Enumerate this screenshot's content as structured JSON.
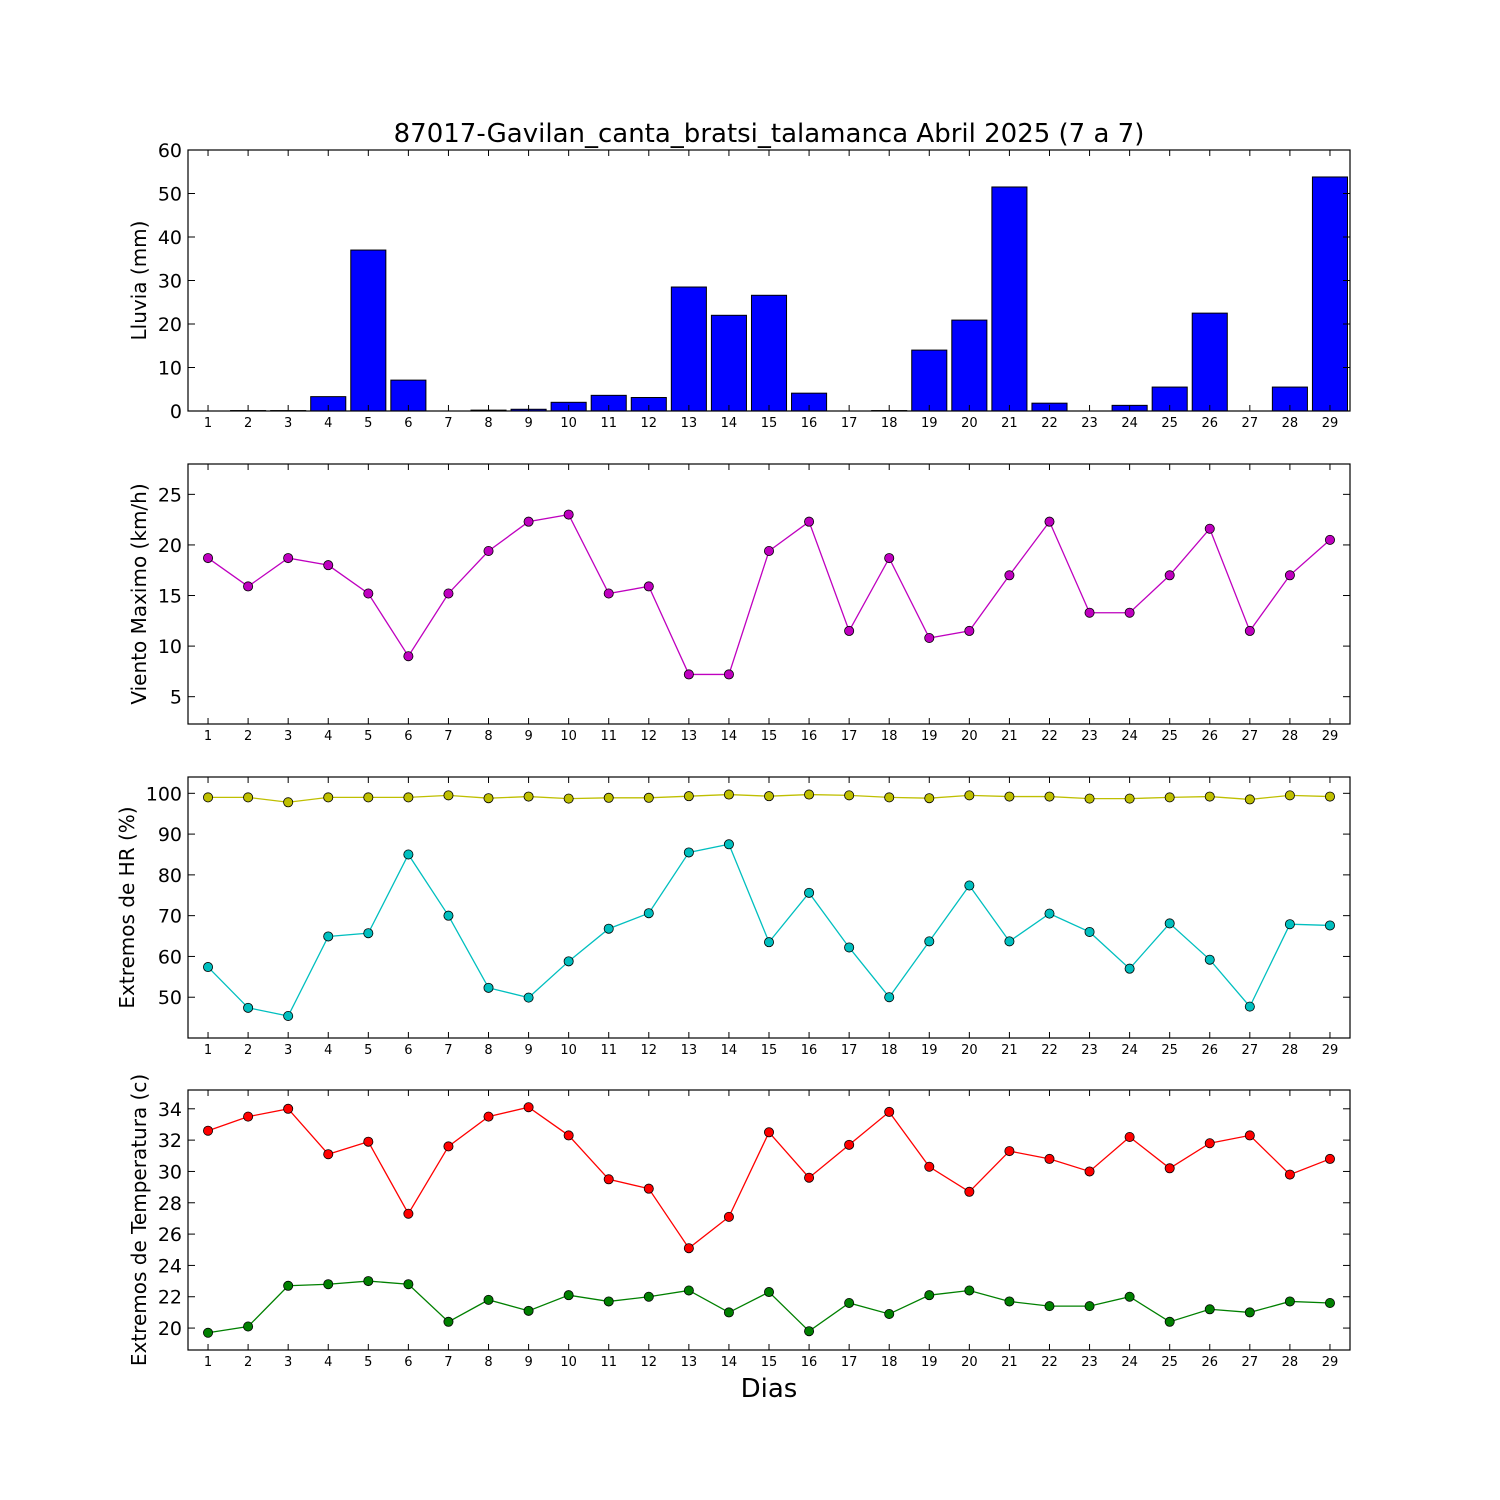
{
  "chart_data": [
    {
      "type": "bar",
      "title": "87017-Gavilan_canta_bratsi_talamanca Abril 2025  (7 a 7)",
      "ylabel": "Lluvia (mm)",
      "xlabel": "",
      "ylim": [
        0,
        60
      ],
      "yticks": [
        0,
        10,
        20,
        30,
        40,
        50,
        60
      ],
      "categories": [
        "1",
        "2",
        "3",
        "4",
        "5",
        "6",
        "7",
        "8",
        "9",
        "10",
        "11",
        "12",
        "13",
        "14",
        "15",
        "16",
        "17",
        "18",
        "19",
        "20",
        "21",
        "22",
        "23",
        "24",
        "25",
        "26",
        "27",
        "28",
        "29"
      ],
      "series": [
        {
          "color": "#0000ff",
          "values": [
            0.0,
            0.1,
            0.1,
            3.3,
            37.0,
            7.1,
            0.0,
            0.2,
            0.4,
            2.0,
            3.6,
            3.1,
            28.5,
            22.0,
            26.6,
            4.1,
            0.0,
            0.1,
            14.0,
            20.9,
            51.5,
            1.8,
            0.0,
            1.3,
            5.5,
            22.5,
            0.0,
            5.5,
            53.8
          ]
        }
      ],
      "grid": false,
      "legend": "none"
    },
    {
      "type": "line",
      "ylabel": "Viento Maximo (km/h)",
      "xlabel": "",
      "ylim": [
        2.3,
        28
      ],
      "yticks": [
        5,
        10,
        15,
        20,
        25
      ],
      "x": [
        1,
        2,
        3,
        4,
        5,
        6,
        7,
        8,
        9,
        10,
        11,
        12,
        13,
        14,
        15,
        16,
        17,
        18,
        19,
        20,
        21,
        22,
        23,
        24,
        25,
        26,
        27,
        28,
        29
      ],
      "series": [
        {
          "color": "#bf00bf",
          "values": [
            18.7,
            15.9,
            18.7,
            18.0,
            15.2,
            9.0,
            15.2,
            19.4,
            22.3,
            23.0,
            15.2,
            15.9,
            7.2,
            7.2,
            19.4,
            22.3,
            11.5,
            18.7,
            10.8,
            11.5,
            17.0,
            22.3,
            13.3,
            13.3,
            17.0,
            21.6,
            11.5,
            17.0,
            20.5
          ]
        }
      ],
      "grid": false,
      "legend": "none"
    },
    {
      "type": "line",
      "ylabel": "Extremos de HR (%)",
      "xlabel": "",
      "ylim": [
        40,
        104
      ],
      "yticks": [
        50,
        60,
        70,
        80,
        90,
        100
      ],
      "x": [
        1,
        2,
        3,
        4,
        5,
        6,
        7,
        8,
        9,
        10,
        11,
        12,
        13,
        14,
        15,
        16,
        17,
        18,
        19,
        20,
        21,
        22,
        23,
        24,
        25,
        26,
        27,
        28,
        29
      ],
      "series": [
        {
          "color": "#bfbf00",
          "values": [
            99.0,
            99.0,
            97.8,
            99.0,
            99.0,
            99.0,
            99.5,
            98.8,
            99.2,
            98.7,
            98.9,
            98.9,
            99.3,
            99.7,
            99.3,
            99.7,
            99.5,
            99.0,
            98.8,
            99.5,
            99.2,
            99.2,
            98.7,
            98.7,
            99.0,
            99.2,
            98.5,
            99.5,
            99.2
          ]
        },
        {
          "color": "#00bfbf",
          "values": [
            57.4,
            47.4,
            45.4,
            64.9,
            65.7,
            85.0,
            70.0,
            52.3,
            49.9,
            58.8,
            66.8,
            70.6,
            85.5,
            87.5,
            63.5,
            75.6,
            62.2,
            50.0,
            63.7,
            77.4,
            63.7,
            70.5,
            66.0,
            57.0,
            68.1,
            59.2,
            47.7,
            67.9,
            67.6
          ]
        }
      ],
      "grid": false,
      "legend": "none"
    },
    {
      "type": "line",
      "ylabel": "Extremos de Temperatura (c)",
      "xlabel": "Dias",
      "ylim": [
        18.6,
        35.2
      ],
      "yticks": [
        20,
        22,
        24,
        26,
        28,
        30,
        32,
        34
      ],
      "x": [
        1,
        2,
        3,
        4,
        5,
        6,
        7,
        8,
        9,
        10,
        11,
        12,
        13,
        14,
        15,
        16,
        17,
        18,
        19,
        20,
        21,
        22,
        23,
        24,
        25,
        26,
        27,
        28,
        29
      ],
      "series": [
        {
          "color": "#ff0000",
          "values": [
            32.6,
            33.5,
            34.0,
            31.1,
            31.9,
            27.3,
            31.6,
            33.5,
            34.1,
            32.3,
            29.5,
            28.9,
            25.1,
            27.1,
            32.5,
            29.6,
            31.7,
            33.8,
            30.3,
            28.7,
            31.3,
            30.8,
            30.0,
            32.2,
            30.2,
            31.8,
            32.3,
            29.8,
            30.8
          ]
        },
        {
          "color": "#008000",
          "values": [
            19.7,
            20.1,
            22.7,
            22.8,
            23.0,
            22.8,
            20.4,
            21.8,
            21.1,
            22.1,
            21.7,
            22.0,
            22.4,
            21.0,
            22.3,
            19.8,
            21.6,
            20.9,
            22.1,
            22.4,
            21.7,
            21.4,
            21.4,
            22.0,
            20.4,
            21.2,
            21.0,
            21.7,
            21.6
          ]
        }
      ],
      "grid": false,
      "legend": "none"
    }
  ]
}
